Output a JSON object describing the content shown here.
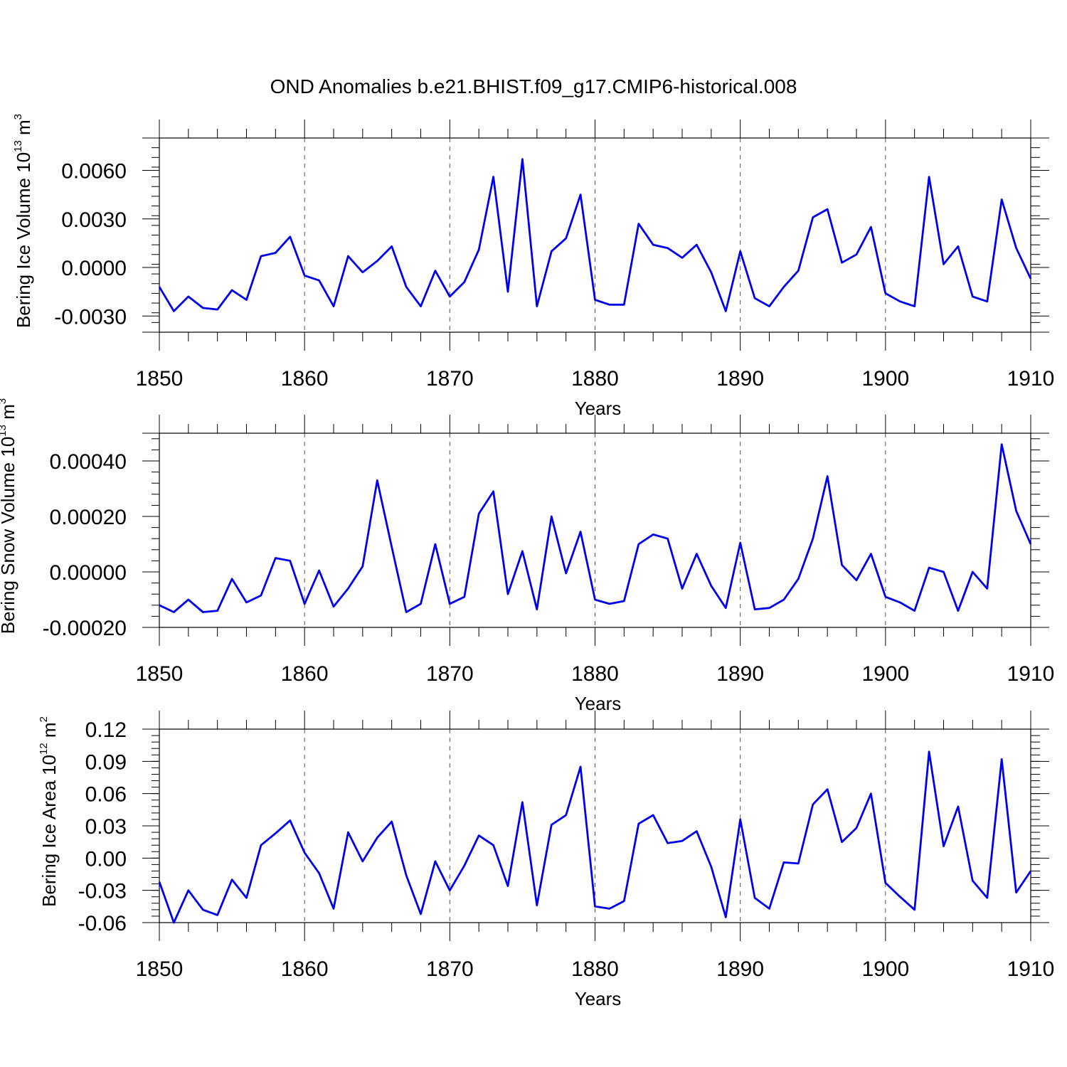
{
  "title": "OND Anomalies b.e21.BHIST.f09_g17.CMIP6-historical.008",
  "colors": {
    "series": "#0000ee",
    "axis": "#000000",
    "grid": "#555555"
  },
  "chart_data": [
    {
      "type": "line",
      "ylabel": {
        "main": "Bering Ice Volume 10",
        "exp": "13",
        "unit": " m",
        "unit_exp": "3"
      },
      "xlabel": "Years",
      "xlim": [
        1850,
        1910
      ],
      "ylim": [
        -0.004,
        0.008
      ],
      "yticks": [
        -0.003,
        0.0,
        0.003,
        0.006
      ],
      "ytick_labels": [
        "-0.0030",
        "0.0000",
        "0.0030",
        "0.0060"
      ],
      "xticks": [
        1850,
        1860,
        1870,
        1880,
        1890,
        1900,
        1910
      ],
      "xtick_labels": [
        "1850",
        "1860",
        "1870",
        "1880",
        "1890",
        "1900",
        "1910"
      ],
      "x_start": 1850,
      "values": [
        -0.0012,
        -0.0027,
        -0.0018,
        -0.0025,
        -0.0026,
        -0.0014,
        -0.002,
        0.0007,
        0.0009,
        0.0019,
        -0.0005,
        -0.0008,
        -0.0024,
        0.0007,
        -0.0003,
        0.0004,
        0.0013,
        -0.0012,
        -0.0024,
        -0.0002,
        -0.0018,
        -0.0009,
        0.0011,
        0.0056,
        -0.0015,
        0.0067,
        -0.0024,
        0.001,
        0.0018,
        0.0045,
        -0.002,
        -0.0023,
        -0.0023,
        0.0027,
        0.0014,
        0.0012,
        0.0006,
        0.0014,
        -0.0003,
        -0.0027,
        0.001,
        -0.0019,
        -0.0024,
        -0.0012,
        -0.0002,
        0.0031,
        0.0036,
        0.0003,
        0.0008,
        0.0025,
        -0.0016,
        -0.0021,
        -0.0024,
        0.0056,
        0.0002,
        0.0013,
        -0.0018,
        -0.0021,
        0.0042,
        0.0012,
        -0.0007
      ]
    },
    {
      "type": "line",
      "ylabel": {
        "main": "Bering Snow Volume 10",
        "exp": "13",
        "unit": " m",
        "unit_exp": "3"
      },
      "xlabel": "Years",
      "xlim": [
        1850,
        1910
      ],
      "ylim": [
        -0.0002,
        0.0005
      ],
      "yticks": [
        -0.0002,
        0.0,
        0.0002,
        0.0004
      ],
      "ytick_labels": [
        "-0.00020",
        "0.00000",
        "0.00020",
        "0.00040"
      ],
      "xticks": [
        1850,
        1860,
        1870,
        1880,
        1890,
        1900,
        1910
      ],
      "xtick_labels": [
        "1850",
        "1860",
        "1870",
        "1880",
        "1890",
        "1900",
        "1910"
      ],
      "x_start": 1850,
      "values": [
        -0.00012,
        -0.000145,
        -0.0001,
        -0.000145,
        -0.00014,
        -2.5e-05,
        -0.00011,
        -8.5e-05,
        5e-05,
        4e-05,
        -0.000115,
        5e-06,
        -0.000125,
        -6e-05,
        2e-05,
        0.00033,
        9e-05,
        -0.000145,
        -0.000115,
        0.0001,
        -0.000115,
        -9e-05,
        0.00021,
        0.00029,
        -8e-05,
        7.5e-05,
        -0.000135,
        0.0002,
        -5e-06,
        0.000145,
        -0.0001,
        -0.000115,
        -0.000105,
        0.0001,
        0.000135,
        0.00012,
        -6e-05,
        6.5e-05,
        -5e-05,
        -0.00013,
        0.000105,
        -0.000135,
        -0.00013,
        -0.0001,
        -2.5e-05,
        0.00012,
        0.000345,
        2.5e-05,
        -3e-05,
        6.5e-05,
        -9e-05,
        -0.00011,
        -0.00014,
        1.5e-05,
        0.0,
        -0.00014,
        0.0,
        -6e-05,
        0.00046,
        0.00022,
        0.0001
      ]
    },
    {
      "type": "line",
      "ylabel": {
        "main": "Bering Ice Area 10",
        "exp": "12",
        "unit": " m",
        "unit_exp": "2"
      },
      "xlabel": "Years",
      "xlim": [
        1850,
        1910
      ],
      "ylim": [
        -0.06,
        0.12
      ],
      "yticks": [
        -0.06,
        -0.03,
        0.0,
        0.03,
        0.06,
        0.09,
        0.12
      ],
      "ytick_labels": [
        "-0.06",
        "-0.03",
        "0.00",
        "0.03",
        "0.06",
        "0.09",
        "0.12"
      ],
      "xticks": [
        1850,
        1860,
        1870,
        1880,
        1890,
        1900,
        1910
      ],
      "xtick_labels": [
        "1850",
        "1860",
        "1870",
        "1880",
        "1890",
        "1900",
        "1910"
      ],
      "x_start": 1850,
      "values": [
        -0.022,
        -0.06,
        -0.03,
        -0.048,
        -0.053,
        -0.02,
        -0.037,
        0.012,
        0.023,
        0.035,
        0.005,
        -0.014,
        -0.047,
        0.024,
        -0.003,
        0.019,
        0.034,
        -0.016,
        -0.052,
        -0.003,
        -0.03,
        -0.007,
        0.021,
        0.012,
        -0.026,
        0.052,
        -0.044,
        0.031,
        0.04,
        0.085,
        -0.045,
        -0.047,
        -0.04,
        0.032,
        0.04,
        0.014,
        0.016,
        0.025,
        -0.008,
        -0.055,
        0.036,
        -0.037,
        -0.047,
        -0.004,
        -0.005,
        0.05,
        0.064,
        0.015,
        0.028,
        0.06,
        -0.023,
        -0.036,
        -0.048,
        0.099,
        0.011,
        0.048,
        -0.021,
        -0.037,
        0.092,
        -0.032,
        -0.012
      ]
    }
  ]
}
